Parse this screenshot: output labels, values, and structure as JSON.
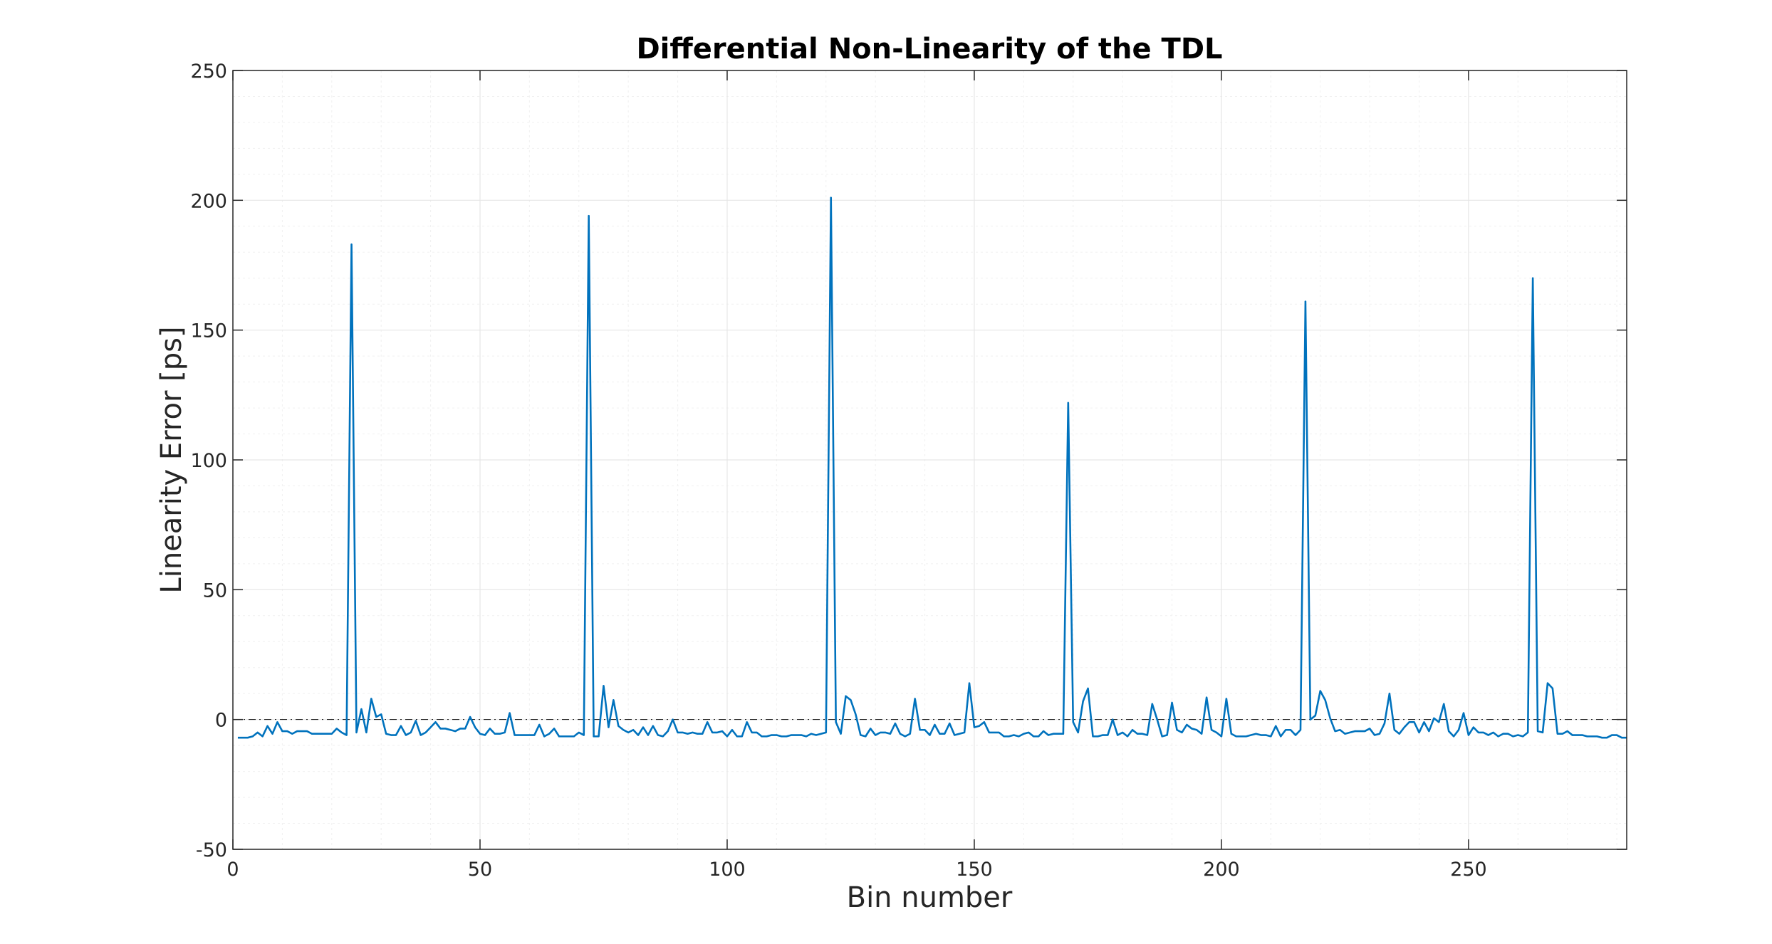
{
  "chart_data": {
    "type": "line",
    "title": "Differential Non-Linearity of the TDL",
    "xlabel": "Bin number",
    "ylabel": "Linearity Error [ps]",
    "xlim": [
      0,
      282
    ],
    "ylim": [
      -50,
      250
    ],
    "xticks": [
      "0",
      "50",
      "100",
      "150",
      "200",
      "250"
    ],
    "yticks": [
      "-50",
      "0",
      "50",
      "100",
      "150",
      "200",
      "250"
    ],
    "grid": true,
    "minor_grid": true,
    "reference_line": {
      "y": 0,
      "style": "dash-dot"
    },
    "colors": {
      "series": "#0072bd",
      "reference": "#000000",
      "grid": "#e6e6e6",
      "axes": "#262626"
    },
    "series": [
      {
        "values": [
          -7,
          -7,
          -7,
          -6.5,
          -5,
          -6.5,
          -2.5,
          -5.5,
          -1,
          -4.5,
          -4.5,
          -5.5,
          -4.5,
          -4.5,
          -4.5,
          -5.5,
          -5.5,
          -5.5,
          -5.5,
          -5.5,
          -3.5,
          -5,
          -6,
          183,
          -5,
          4,
          -5,
          8,
          1,
          2,
          -5.5,
          -6,
          -6,
          -2.5,
          -6,
          -5,
          -0.5,
          -6,
          -5,
          -3,
          -1,
          -3.5,
          -3.5,
          -4,
          -4.5,
          -3.5,
          -3.5,
          1,
          -3,
          -5.5,
          -6,
          -3.5,
          -5.5,
          -5.5,
          -5,
          2.5,
          -6,
          -6,
          -6,
          -6,
          -6,
          -2,
          -6.5,
          -5.5,
          -3.5,
          -6.5,
          -6.5,
          -6.5,
          -6.5,
          -5,
          -6,
          194,
          -6.5,
          -6.5,
          13,
          -3,
          7.5,
          -2.5,
          -4,
          -5,
          -4,
          -6,
          -3,
          -6,
          -2.5,
          -6,
          -6.5,
          -4.5,
          0,
          -5,
          -5,
          -5.5,
          -5,
          -5.5,
          -5.5,
          -1,
          -5,
          -5,
          -4.5,
          -6.5,
          -4,
          -6.5,
          -6.5,
          -1,
          -5,
          -5,
          -6.5,
          -6.5,
          -6,
          -6,
          -6.5,
          -6.5,
          -6,
          -6,
          -6,
          -6.5,
          -5.5,
          -6,
          -5.5,
          -5,
          201,
          -1,
          -5.5,
          9,
          7.5,
          2,
          -6,
          -6.5,
          -3.5,
          -6,
          -5,
          -5,
          -5.5,
          -1.5,
          -5.5,
          -6.5,
          -5.5,
          8,
          -4,
          -4,
          -6,
          -2,
          -5.5,
          -5.5,
          -1.5,
          -6,
          -5.5,
          -5,
          14,
          -3,
          -2.5,
          -1,
          -5,
          -5,
          -5,
          -6.5,
          -6.5,
          -6,
          -6.5,
          -5.5,
          -5,
          -6.5,
          -6.5,
          -4.5,
          -6,
          -5.5,
          -5.5,
          -5.5,
          122,
          -1,
          -5,
          7,
          12,
          -6.5,
          -6.5,
          -6,
          -6,
          0,
          -6,
          -5,
          -6.5,
          -4,
          -5.5,
          -5.5,
          -6,
          6,
          0,
          -6.5,
          -6,
          6.5,
          -4,
          -5,
          -2,
          -3.5,
          -4,
          -5.5,
          8.5,
          -4,
          -5,
          -6.5,
          8,
          -5.5,
          -6.5,
          -6.5,
          -6.5,
          -6,
          -5.5,
          -6,
          -6,
          -6.5,
          -2.5,
          -6.5,
          -4,
          -4,
          -6,
          -4,
          161,
          0,
          1.5,
          11,
          7.5,
          0.5,
          -4.5,
          -4,
          -5.5,
          -5,
          -4.5,
          -4.5,
          -4.5,
          -3.5,
          -6,
          -5.5,
          -1.5,
          10,
          -4,
          -5.5,
          -3,
          -1,
          -1,
          -5,
          -1,
          -4.5,
          0.5,
          -1,
          6,
          -4.5,
          -6.5,
          -4,
          2.5,
          -6,
          -3,
          -5,
          -5,
          -6,
          -5,
          -6.5,
          -5.5,
          -5.5,
          -6.5,
          -6,
          -6.5,
          -5,
          170,
          -4.5,
          -5,
          14,
          12,
          -5.5,
          -5.5,
          -4.5,
          -6,
          -6,
          -6,
          -6.5,
          -6.5,
          -6.5,
          -7,
          -7,
          -6,
          -6,
          -7,
          -7
        ]
      }
    ]
  }
}
